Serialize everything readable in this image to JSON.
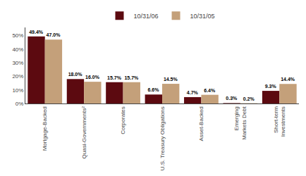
{
  "chart_data": {
    "type": "bar",
    "categories": [
      "Mortgage-Backed",
      "Quasi-Governments²",
      "Corporates",
      "U.S. Treasury Obligations",
      "Asset-Backed",
      "Emerging\nMarkets Debt",
      "Short-term\nInvestments"
    ],
    "series": [
      {
        "name": "10/31/06",
        "color": "#5c0a10",
        "values": [
          49.4,
          18.0,
          15.7,
          6.6,
          4.7,
          0.3,
          9.3
        ],
        "value_labels": [
          "49.4%",
          "18.0%",
          "15.7%",
          "6.6%",
          "4.7%",
          "0.3%",
          "9.3%"
        ]
      },
      {
        "name": "10/31/05",
        "color": "#c4a07a",
        "values": [
          47.0,
          16.0,
          15.7,
          14.5,
          6.4,
          0.2,
          14.4
        ],
        "value_labels": [
          "47.0%",
          "16.0%",
          "15.7%",
          "14.5%",
          "6.4%",
          "0.2%",
          "14.4%"
        ]
      }
    ],
    "ylim": [
      0,
      56
    ],
    "yticks": [
      {
        "value": 0,
        "label": "0%"
      },
      {
        "value": 10,
        "label": "10%"
      },
      {
        "value": 20,
        "label": "20%"
      },
      {
        "value": 30,
        "label": "30%"
      },
      {
        "value": 40,
        "label": "40%"
      },
      {
        "value": 50,
        "label": "50%"
      }
    ],
    "grid": false,
    "legend": "top",
    "data_labels": true
  }
}
